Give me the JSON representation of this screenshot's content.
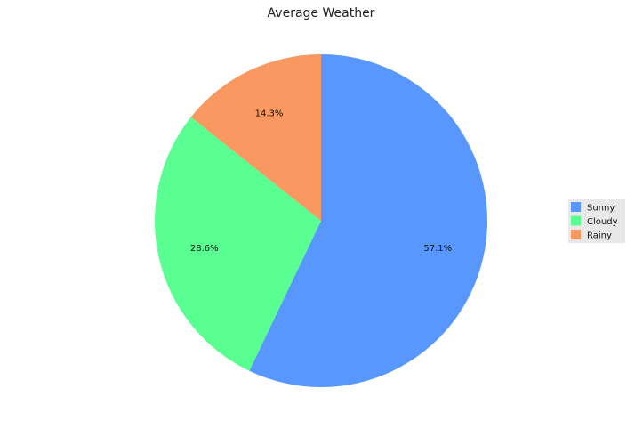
{
  "chart_data": {
    "type": "pie",
    "title": "Average Weather",
    "categories": [
      "Sunny",
      "Cloudy",
      "Rainy"
    ],
    "values": [
      57.1,
      28.6,
      14.3
    ],
    "labels": [
      "57.1%",
      "28.6%",
      "14.3%"
    ],
    "colors": [
      "#5897ff",
      "#5aff92",
      "#f99860"
    ],
    "legend": {
      "placement": "right",
      "background": "#e8e8e8"
    },
    "start_angle": "top, clockwise"
  }
}
